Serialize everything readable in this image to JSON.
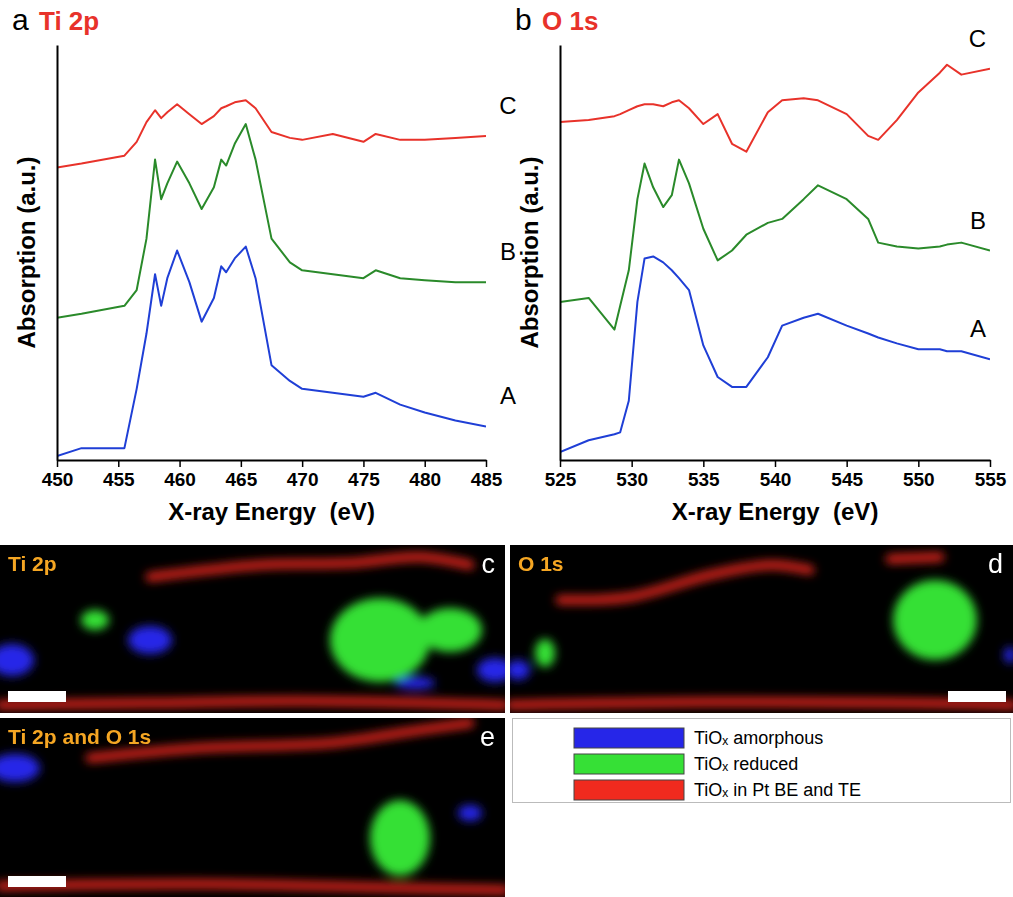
{
  "chart_data": [
    {
      "type": "line",
      "panel": "a",
      "title": "Ti 2p",
      "x_label": "X-ray Energy  (eV)",
      "y_label": "Absorption (a.u.)",
      "xlim": [
        450,
        485
      ],
      "xticks": [
        450,
        455,
        460,
        465,
        470,
        475,
        480,
        485
      ],
      "ylim": [
        0,
        10.5
      ],
      "yticks": [],
      "tick_labels": "x",
      "series": [
        {
          "name": "A",
          "color": "#1f3fd6",
          "x": [
            450,
            452,
            455.5,
            456.5,
            457.3,
            458,
            458.5,
            459,
            459.8,
            460.8,
            461.8,
            462.8,
            463.4,
            463.8,
            464.5,
            465.4,
            466.2,
            467.5,
            469,
            470,
            472.5,
            475,
            476,
            478,
            480,
            482.5,
            485
          ],
          "values": [
            0.1,
            0.3,
            0.3,
            1.8,
            3.2,
            4.7,
            3.9,
            4.6,
            5.3,
            4.5,
            3.5,
            4.1,
            4.9,
            4.75,
            5.1,
            5.4,
            4.6,
            2.4,
            2.0,
            1.8,
            1.7,
            1.6,
            1.7,
            1.4,
            1.2,
            1.0,
            0.85
          ]
        },
        {
          "name": "B",
          "color": "#2a8a2a",
          "x": [
            450,
            452,
            455.5,
            456.5,
            457.3,
            458,
            458.5,
            459,
            459.8,
            460.8,
            461.8,
            462.8,
            463.4,
            463.8,
            464.5,
            465.4,
            466.2,
            467.5,
            469,
            470,
            472.5,
            475,
            476,
            478,
            480,
            482.5,
            485
          ],
          "values": [
            3.6,
            3.7,
            3.9,
            4.3,
            5.6,
            7.6,
            6.6,
            7.0,
            7.55,
            7.0,
            6.35,
            6.9,
            7.6,
            7.45,
            8.0,
            8.5,
            7.6,
            5.6,
            5.0,
            4.8,
            4.7,
            4.6,
            4.8,
            4.6,
            4.55,
            4.5,
            4.5
          ]
        },
        {
          "name": "C",
          "color": "#e8322a",
          "x": [
            450,
            452,
            455.5,
            456.5,
            457.3,
            458,
            458.5,
            459,
            459.8,
            460.8,
            461.8,
            462.8,
            463.4,
            463.8,
            464.5,
            465.4,
            466.2,
            467.5,
            469,
            470,
            472.5,
            475,
            476,
            478,
            480,
            482.5,
            485
          ],
          "values": [
            7.4,
            7.5,
            7.7,
            8.05,
            8.55,
            8.85,
            8.65,
            8.8,
            9.0,
            8.75,
            8.5,
            8.7,
            8.9,
            8.95,
            9.05,
            9.1,
            8.9,
            8.3,
            8.15,
            8.1,
            8.25,
            8.05,
            8.25,
            8.1,
            8.1,
            8.15,
            8.2
          ]
        }
      ]
    },
    {
      "type": "line",
      "panel": "b",
      "title": "O 1s",
      "x_label": "X-ray Energy  (eV)",
      "y_label": "Absorption (a.u.)",
      "xlim": [
        525,
        555
      ],
      "xticks": [
        525,
        530,
        535,
        540,
        545,
        550,
        555
      ],
      "ylim": [
        0,
        10.5
      ],
      "yticks": [],
      "tick_labels": "x",
      "series": [
        {
          "name": "A",
          "color": "#1f3fd6",
          "x": [
            525,
            527,
            528.8,
            529.2,
            529.8,
            530.4,
            530.9,
            531.5,
            532.2,
            532.8,
            533.3,
            534,
            535,
            536,
            537,
            538,
            539.5,
            540.5,
            542,
            543,
            545,
            546.5,
            547.2,
            548.5,
            550,
            551.5,
            552,
            553,
            555
          ],
          "values": [
            0.2,
            0.5,
            0.65,
            0.7,
            1.5,
            4.0,
            5.1,
            5.15,
            5.0,
            4.8,
            4.6,
            4.3,
            2.9,
            2.1,
            1.85,
            1.85,
            2.6,
            3.4,
            3.6,
            3.7,
            3.4,
            3.2,
            3.1,
            2.95,
            2.8,
            2.8,
            2.75,
            2.75,
            2.55
          ]
        },
        {
          "name": "B",
          "color": "#2a8a2a",
          "x": [
            525,
            527,
            528.8,
            529.2,
            529.8,
            530.4,
            530.9,
            531.5,
            532.2,
            532.8,
            533.3,
            534,
            535,
            536,
            537,
            538,
            539.5,
            540.5,
            542,
            543,
            545,
            546.5,
            547.2,
            548.5,
            550,
            551.5,
            552,
            553,
            555
          ],
          "values": [
            4.0,
            4.1,
            3.3,
            3.9,
            4.8,
            6.6,
            7.5,
            6.9,
            6.4,
            6.7,
            7.6,
            7.0,
            5.85,
            5.05,
            5.3,
            5.7,
            6.0,
            6.1,
            6.6,
            6.95,
            6.6,
            6.1,
            5.5,
            5.4,
            5.35,
            5.4,
            5.45,
            5.5,
            5.3
          ]
        },
        {
          "name": "C",
          "color": "#e8322a",
          "x": [
            525,
            527,
            528.8,
            529.2,
            529.8,
            530.4,
            530.9,
            531.5,
            532.2,
            532.8,
            533.3,
            534,
            535,
            536,
            537,
            538,
            539.5,
            540.5,
            542,
            543,
            545,
            546.5,
            547.2,
            548.5,
            550,
            551.5,
            552,
            553,
            555
          ],
          "values": [
            8.55,
            8.6,
            8.7,
            8.75,
            8.85,
            8.95,
            9.0,
            9.0,
            8.95,
            9.05,
            9.1,
            8.9,
            8.5,
            8.75,
            8.0,
            7.8,
            8.8,
            9.1,
            9.15,
            9.1,
            8.75,
            8.2,
            8.1,
            8.6,
            9.3,
            9.8,
            10.0,
            9.75,
            9.9
          ]
        }
      ]
    }
  ],
  "maps": [
    {
      "letter": "c",
      "title": "Ti 2p"
    },
    {
      "letter": "d",
      "title": "O 1s"
    },
    {
      "letter": "e",
      "title": "Ti 2p and O 1s"
    }
  ],
  "map_legend": [
    {
      "name": "TiOₓ amorphous",
      "color": "#2626e8"
    },
    {
      "name": "TiOₓ reduced",
      "color": "#36e036"
    },
    {
      "name": "TiOₓ in Pt BE and TE",
      "color": "#f02a1e"
    }
  ]
}
